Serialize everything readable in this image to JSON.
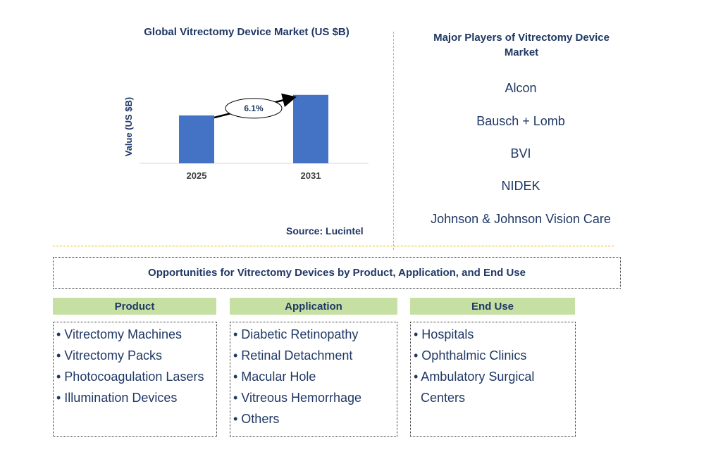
{
  "chart_data": {
    "type": "bar",
    "title": "Global Vitrectomy Device Market (US $B)",
    "categories": [
      "2025",
      "2031"
    ],
    "values": [
      1.0,
      1.43
    ],
    "ylim": [
      0,
      1.5
    ],
    "xlabel": "",
    "ylabel": "Value (US $B)",
    "annotation": "6.1%",
    "bar_color": "#4472c4",
    "source": "Source: Lucintel"
  },
  "players": {
    "title": "Major Players of Vitrectomy Device Market",
    "items": [
      "Alcon",
      "Bausch + Lomb",
      "BVI",
      "NIDEK",
      "Johnson & Johnson Vision Care"
    ]
  },
  "opportunities": {
    "title": "Opportunities for Vitrectomy Devices by Product, Application, and End Use",
    "columns": [
      {
        "header": "Product",
        "items": [
          "• Vitrectomy Machines",
          "• Vitrectomy Packs",
          "• Photocoagulation Lasers",
          "• Illumination Devices"
        ]
      },
      {
        "header": "Application",
        "items": [
          "• Diabetic Retinopathy",
          "• Retinal Detachment",
          "• Macular Hole",
          "• Vitreous Hemorrhage",
          "• Others"
        ]
      },
      {
        "header": "End Use",
        "items": [
          "• Hospitals",
          "• Ophthalmic Clinics",
          "• Ambulatory Surgical",
          "Centers"
        ]
      }
    ]
  },
  "colors": {
    "text": "#1f3864",
    "header_bg": "#c6e0a4",
    "divider": "#f0b400"
  }
}
